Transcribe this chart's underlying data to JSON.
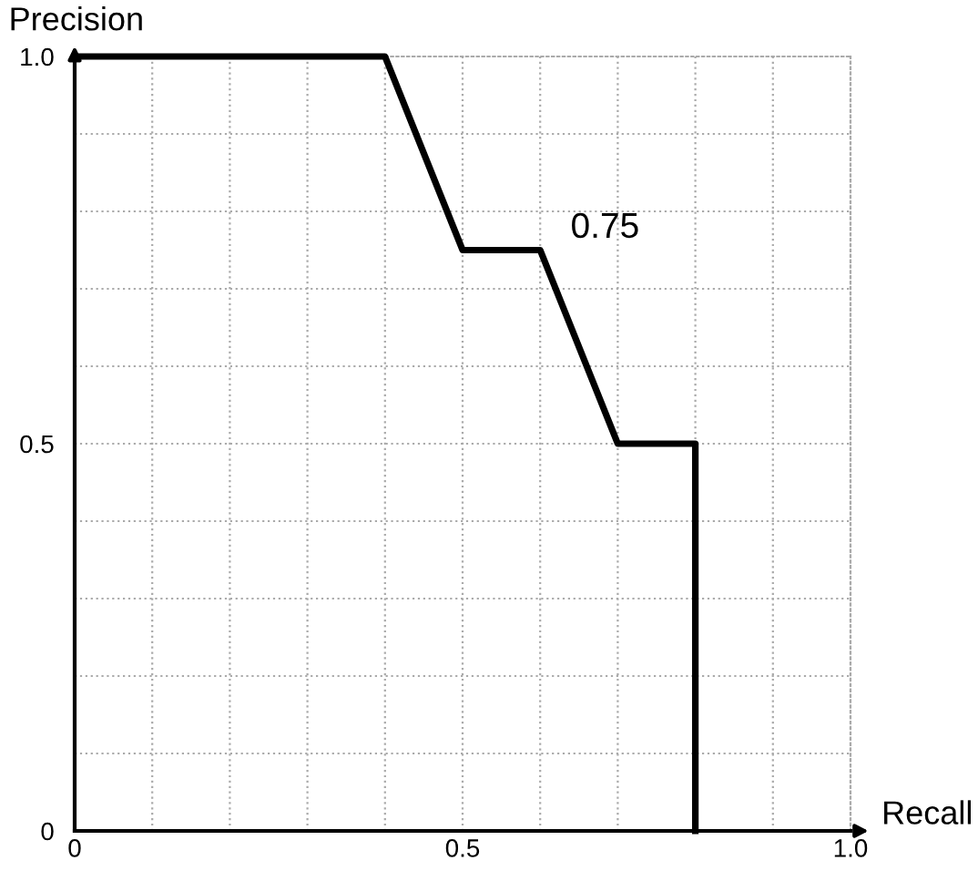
{
  "chart_data": {
    "type": "line",
    "xlabel": "Recall",
    "ylabel": "Precision",
    "x": [
      0,
      0.4,
      0.5,
      0.6,
      0.7,
      0.8,
      0.8
    ],
    "series": [
      {
        "color": "#000000",
        "values": [
          1,
          1,
          0.75,
          0.75,
          0.5,
          0.5,
          0
        ]
      }
    ],
    "xlim": [
      0,
      1
    ],
    "ylim": [
      0,
      1
    ],
    "xticks": [
      0,
      {
        "value": 0.1,
        "label": null
      },
      {
        "value": 0.2,
        "label": null
      },
      {
        "value": 0.3,
        "label": null
      },
      {
        "value": 0.4,
        "label": null
      },
      0.5,
      {
        "value": 0.6,
        "label": null
      },
      {
        "value": 0.7,
        "label": null
      },
      {
        "value": 0.8,
        "label": null
      },
      {
        "value": 0.9,
        "label": null
      },
      {
        "value": 1,
        "label": "1.0"
      }
    ],
    "yticks": [
      0,
      {
        "value": 0.1,
        "label": null
      },
      {
        "value": 0.2,
        "label": null
      },
      {
        "value": 0.3,
        "label": null
      },
      {
        "value": 0.4,
        "label": null
      },
      0.5,
      {
        "value": 0.6,
        "label": null
      },
      {
        "value": 0.7,
        "label": null
      },
      {
        "value": 0.8,
        "label": null
      },
      {
        "value": 0.9,
        "label": null
      },
      {
        "value": 1,
        "label": "1.0"
      }
    ],
    "annotations": [
      {
        "text": "0.75",
        "x": 0.6,
        "y": 0.75
      }
    ],
    "grid": true,
    "marker": "none",
    "line_style": "solid"
  }
}
